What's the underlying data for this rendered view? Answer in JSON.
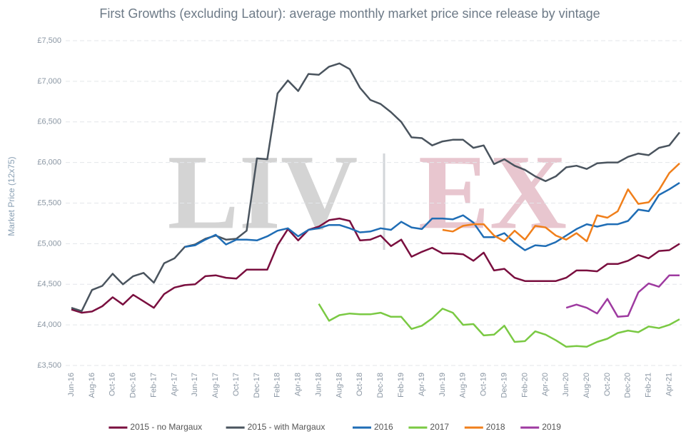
{
  "chart_data": {
    "type": "line",
    "title": "First Growths (excluding Latour): average monthly market price since release by vintage",
    "y_label": "Market Price (12x75)",
    "watermark": [
      "LIV",
      "EX"
    ],
    "categories": [
      "Jun-16",
      null,
      "Aug-16",
      null,
      "Oct-16",
      null,
      "Dec-16",
      null,
      "Feb-17",
      null,
      "Apr-17",
      null,
      "Jun-17",
      null,
      "Aug-17",
      null,
      "Oct-17",
      null,
      "Dec-17",
      null,
      "Feb-18",
      null,
      "Apr-18",
      null,
      "Jun-18",
      null,
      "Aug-18",
      null,
      "Oct-18",
      null,
      "Dec-18",
      null,
      "Feb-19",
      null,
      "Apr-19",
      null,
      "Jun-19",
      null,
      "Aug-19",
      null,
      "Oct-19",
      null,
      "Dec-19",
      null,
      "Feb-20",
      null,
      "Apr-20",
      null,
      "Jun-20",
      null,
      "Aug-20",
      null,
      "Oct-20",
      null,
      "Dec-20",
      null,
      "Feb-21",
      null,
      "Apr-21",
      null
    ],
    "ylim": [
      3500,
      7500
    ],
    "yticks": [
      {
        "value": 3500,
        "label": "£3,500"
      },
      {
        "value": 4000,
        "label": "£4,000"
      },
      {
        "value": 4500,
        "label": "£4,500"
      },
      {
        "value": 5000,
        "label": "£5,000"
      },
      {
        "value": 5500,
        "label": "£5,500"
      },
      {
        "value": 6000,
        "label": "£6,000"
      },
      {
        "value": 6500,
        "label": "£6,500"
      },
      {
        "value": 7000,
        "label": "£7,000"
      },
      {
        "value": 7500,
        "label": "£7,500"
      }
    ],
    "grid": true,
    "legend": "bottom",
    "series": [
      {
        "name": "2015 - no Margaux",
        "color": "#7a0f3f",
        "values": [
          4190,
          4150,
          4165,
          4230,
          4340,
          4250,
          4370,
          4290,
          4210,
          4380,
          4460,
          4490,
          4500,
          4600,
          4610,
          4580,
          4570,
          4680,
          4680,
          4680,
          4980,
          5180,
          5040,
          5170,
          5210,
          5290,
          5310,
          5280,
          5040,
          5050,
          5100,
          4970,
          5050,
          4840,
          4900,
          4950,
          4880,
          4880,
          4870,
          4790,
          4890,
          4670,
          4690,
          4580,
          4540,
          4540,
          4540,
          4540,
          4580,
          4670,
          4670,
          4660,
          4750,
          4750,
          4790,
          4860,
          4820,
          4910,
          4920,
          5000
        ]
      },
      {
        "name": "2015 - with Margaux",
        "color": "#4a545e",
        "values": [
          4210,
          4170,
          4430,
          4480,
          4630,
          4500,
          4600,
          4640,
          4520,
          4760,
          4820,
          4960,
          4990,
          5060,
          5100,
          5050,
          5060,
          5160,
          6050,
          6040,
          6850,
          7010,
          6880,
          7090,
          7080,
          7180,
          7220,
          7150,
          6920,
          6770,
          6720,
          6620,
          6500,
          6310,
          6300,
          6210,
          6260,
          6280,
          6280,
          6180,
          6210,
          5980,
          6040,
          5960,
          5910,
          5830,
          5770,
          5830,
          5940,
          5960,
          5920,
          5990,
          6000,
          6000,
          6070,
          6110,
          6090,
          6180,
          6210,
          6370
        ]
      },
      {
        "name": "2016",
        "color": "#1f6db5",
        "values": [
          null,
          null,
          null,
          null,
          null,
          null,
          null,
          null,
          null,
          null,
          null,
          4960,
          4980,
          5050,
          5110,
          4990,
          5050,
          5050,
          5040,
          5090,
          5160,
          5190,
          5090,
          5170,
          5190,
          5230,
          5230,
          5190,
          5140,
          5150,
          5190,
          5170,
          5270,
          5200,
          5180,
          5310,
          5310,
          5300,
          5350,
          5260,
          5080,
          5080,
          5130,
          5010,
          4920,
          4980,
          4970,
          5020,
          5100,
          5180,
          5240,
          5210,
          5240,
          5240,
          5280,
          5420,
          5400,
          5600,
          5670,
          5750
        ]
      },
      {
        "name": "2017",
        "color": "#7ac943",
        "values": [
          null,
          null,
          null,
          null,
          null,
          null,
          null,
          null,
          null,
          null,
          null,
          null,
          null,
          null,
          null,
          null,
          null,
          null,
          null,
          null,
          null,
          null,
          null,
          null,
          4260,
          4050,
          4120,
          4140,
          4130,
          4130,
          4150,
          4100,
          4100,
          3950,
          3990,
          4080,
          4200,
          4150,
          4000,
          4010,
          3870,
          3880,
          3990,
          3790,
          3800,
          3920,
          3880,
          3810,
          3730,
          3740,
          3730,
          3790,
          3830,
          3900,
          3930,
          3910,
          3980,
          3960,
          4000,
          4070
        ]
      },
      {
        "name": "2018",
        "color": "#f07f1b",
        "values": [
          null,
          null,
          null,
          null,
          null,
          null,
          null,
          null,
          null,
          null,
          null,
          null,
          null,
          null,
          null,
          null,
          null,
          null,
          null,
          null,
          null,
          null,
          null,
          null,
          null,
          null,
          null,
          null,
          null,
          null,
          null,
          null,
          null,
          null,
          null,
          null,
          5170,
          5150,
          5220,
          5240,
          5240,
          5100,
          5030,
          5160,
          5050,
          5220,
          5200,
          5100,
          5050,
          5130,
          5030,
          5350,
          5320,
          5400,
          5670,
          5490,
          5510,
          5660,
          5870,
          5990
        ]
      },
      {
        "name": "2019",
        "color": "#9e3aa0",
        "values": [
          null,
          null,
          null,
          null,
          null,
          null,
          null,
          null,
          null,
          null,
          null,
          null,
          null,
          null,
          null,
          null,
          null,
          null,
          null,
          null,
          null,
          null,
          null,
          null,
          null,
          null,
          null,
          null,
          null,
          null,
          null,
          null,
          null,
          null,
          null,
          null,
          null,
          null,
          null,
          null,
          null,
          null,
          null,
          null,
          null,
          null,
          null,
          null,
          4210,
          4250,
          4210,
          4140,
          4320,
          4100,
          4110,
          4400,
          4510,
          4470,
          4610,
          4610
        ]
      }
    ]
  }
}
